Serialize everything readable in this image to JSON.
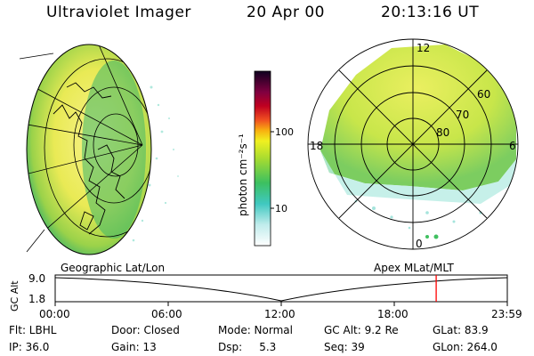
{
  "header": {
    "title": "Ultraviolet Imager",
    "date": "20 Apr 00",
    "time": "20:13:16 UT"
  },
  "colorbar": {
    "unit_label": "photon cm⁻²s⁻¹",
    "ticks": [
      "100",
      "10"
    ]
  },
  "polar_plot": {
    "mlt_labels": [
      "12",
      "18",
      "6",
      "0"
    ],
    "lat_labels": [
      "60",
      "70",
      "80"
    ]
  },
  "orbit_panel": {
    "left_title": "Geographic Lat/Lon",
    "right_title": "Apex MLat/MLT",
    "y_axis_label": "GC Alt",
    "y_ticks": [
      "9.0",
      "1.8"
    ],
    "x_ticks": [
      "00:00",
      "06:00",
      "12:00",
      "18:00",
      "23:59"
    ],
    "current_time_fraction": 0.8427
  },
  "footer": {
    "row1": [
      "Flt: LBHL",
      "Door: Closed",
      "Mode: Normal",
      "GC Alt: 9.2 Re",
      "GLat: 83.9"
    ],
    "row2": [
      "IP: 36.0",
      "Gain: 13",
      "Dsp:     5.3",
      "Seq: 39",
      "GLon: 264.0"
    ]
  },
  "colors": {
    "cursor_line": "#ff0000",
    "earth_fill": "#f0ee60",
    "polar_fill": "#d4ea4a"
  }
}
